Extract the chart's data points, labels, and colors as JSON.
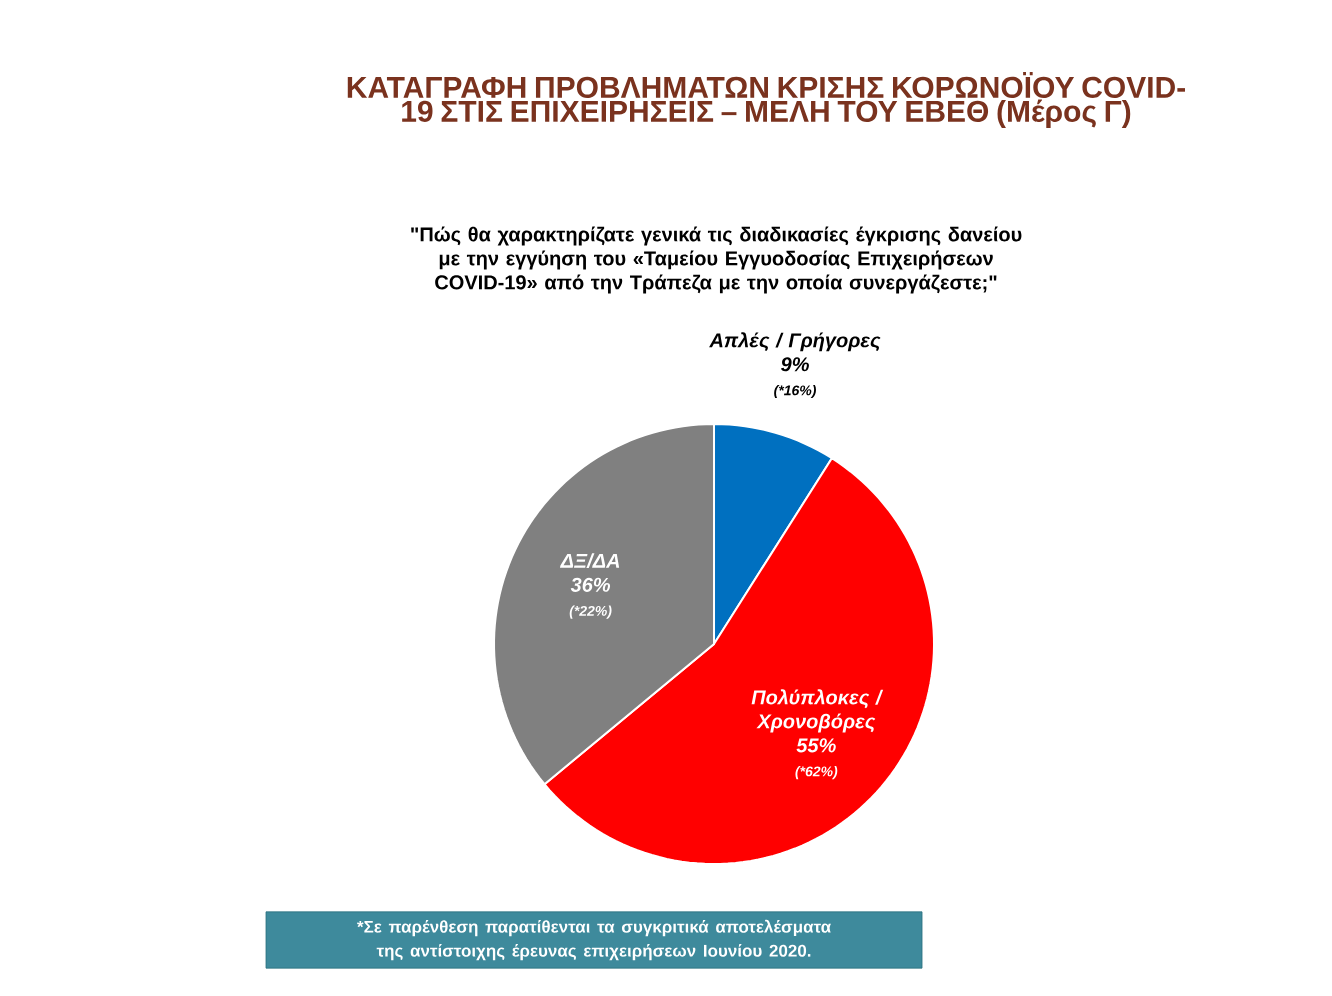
{
  "chart_data": {
    "type": "pie",
    "title": "ΚΑΤΑΓΡΑΦΗ ΠΡΟΒΛΗΜΑΤΩΝ ΚΡΙΣΗΣ ΚΟΡΩΝΟΪΟΥ COVID-19 ΣΤΙΣ ΕΠΙΧΕΙΡΗΣΕΙΣ – ΜΕΛΗ ΤΟΥ ΕΒΕΘ (Μέρος Γ)",
    "subtitle": "\"Πώς θα χαρακτηρίζατε γενικά τις διαδικασίες έγκρισης δανείου με την εγγύηση του «Ταμείου Εγγυοδοσίας Επιχειρήσεων COVID-19» από την Τράπεζα με την οποία συνεργάζεστε;\"",
    "categories": [
      "Απλές / Γρήγορες",
      "Πολύπλοκες / Χρονοβόρες",
      "ΔΞ/ΔΑ"
    ],
    "values": [
      9,
      55,
      36
    ],
    "value_labels": [
      "9%",
      "55%",
      "36%"
    ],
    "colors": [
      "#0070c0",
      "#ff0000",
      "#808080"
    ],
    "annotations": [
      {
        "text": "(*16%)",
        "x": "Απλές / Γρήγορες"
      },
      {
        "text": "(*62%)",
        "x": "Πολύπλοκες / Χρονοβόρες"
      },
      {
        "text": "(*22%)",
        "x": "ΔΞ/ΔΑ"
      },
      "*Σε παρένθεση παρατίθενται τα συγκριτικά αποτελέσματα της αντίστοιχης έρευνας επιχειρήσεων Ιουνίου 2020."
    ]
  }
}
